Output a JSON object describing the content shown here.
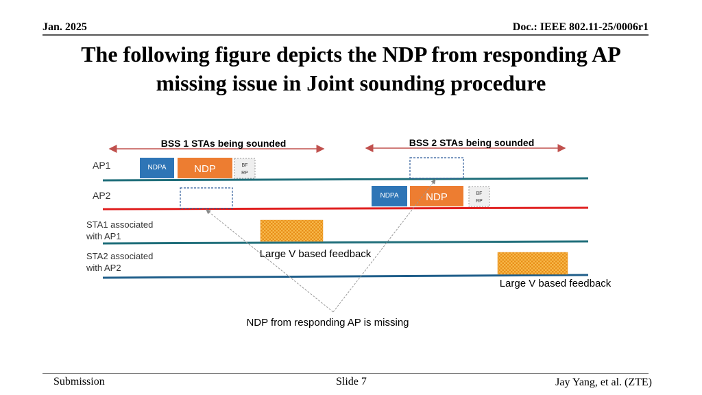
{
  "header": {
    "date": "Jan. 2025",
    "doc_id": "Doc.: IEEE 802.11-25/0006r1"
  },
  "title": {
    "line1": "The following figure depicts the NDP from responding AP",
    "line2": "missing issue in Joint sounding procedure"
  },
  "figure": {
    "bss1_label": "BSS 1 STAs being sounded",
    "bss2_label": "BSS 2 STAs being sounded",
    "rows": {
      "ap1": "AP1",
      "ap2": "AP2",
      "sta1_line1": "STA1 associated",
      "sta1_line2": "with AP1",
      "sta2_line1": "STA2 associated",
      "sta2_line2": "with AP2"
    },
    "frames": {
      "ndpa": "NDPA",
      "ndp": "NDP",
      "bfrp_line1": "BF",
      "bfrp_line2": "RP"
    },
    "feedback_label": "Large V based feedback",
    "missing_label": "NDP from responding AP is missing",
    "colors": {
      "ndpa": "#2E75B6",
      "ndp": "#ED7D31",
      "feedback": "#F4A21C",
      "line_teal": "#1F6E7A",
      "line_red": "#E02020",
      "bracket": "#C0504D"
    }
  },
  "footer": {
    "left": "Submission",
    "middle": "Slide 7",
    "right": "Jay Yang, et al. (ZTE)"
  }
}
